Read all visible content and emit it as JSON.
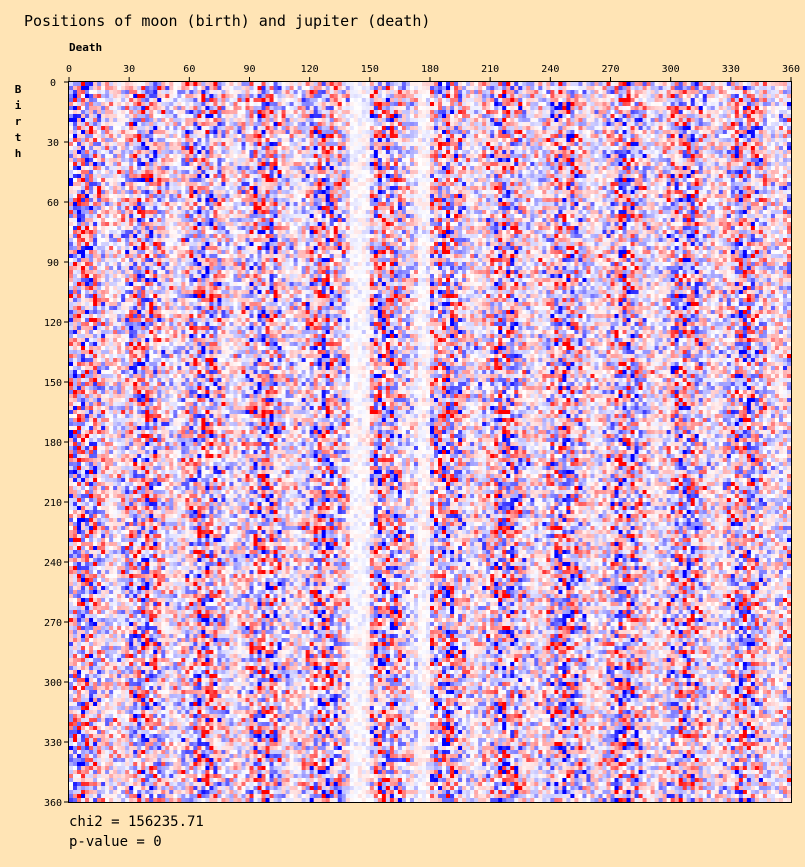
{
  "chart_data": {
    "type": "heatmap",
    "title": "Positions of moon (birth) and jupiter (death)",
    "xlabel": "Death",
    "ylabel": "Birth",
    "x_axis_position": "top",
    "xlim": [
      0,
      360
    ],
    "ylim": [
      0,
      360
    ],
    "x_ticks": [
      "0",
      "30",
      "60",
      "90",
      "120",
      "150",
      "180",
      "210",
      "240",
      "270",
      "300",
      "330",
      "360"
    ],
    "y_ticks": [
      "0",
      "30",
      "60",
      "90",
      "120",
      "150",
      "180",
      "210",
      "240",
      "270",
      "300",
      "330",
      "360"
    ],
    "bin_size_degrees": 2,
    "colormap": {
      "low": "#0000FF",
      "mid": "#FFFFFF",
      "high": "#FF0000"
    },
    "column_pattern_notes": "random residual noise with faint vertical banding; lighter columns near x=140-150 and x=175-180",
    "light_columns": [
      [
        140,
        150
      ],
      [
        174,
        180
      ]
    ],
    "chi2_label": "chi2 = 156235.71",
    "pvalue_label": "p-value = 0"
  }
}
